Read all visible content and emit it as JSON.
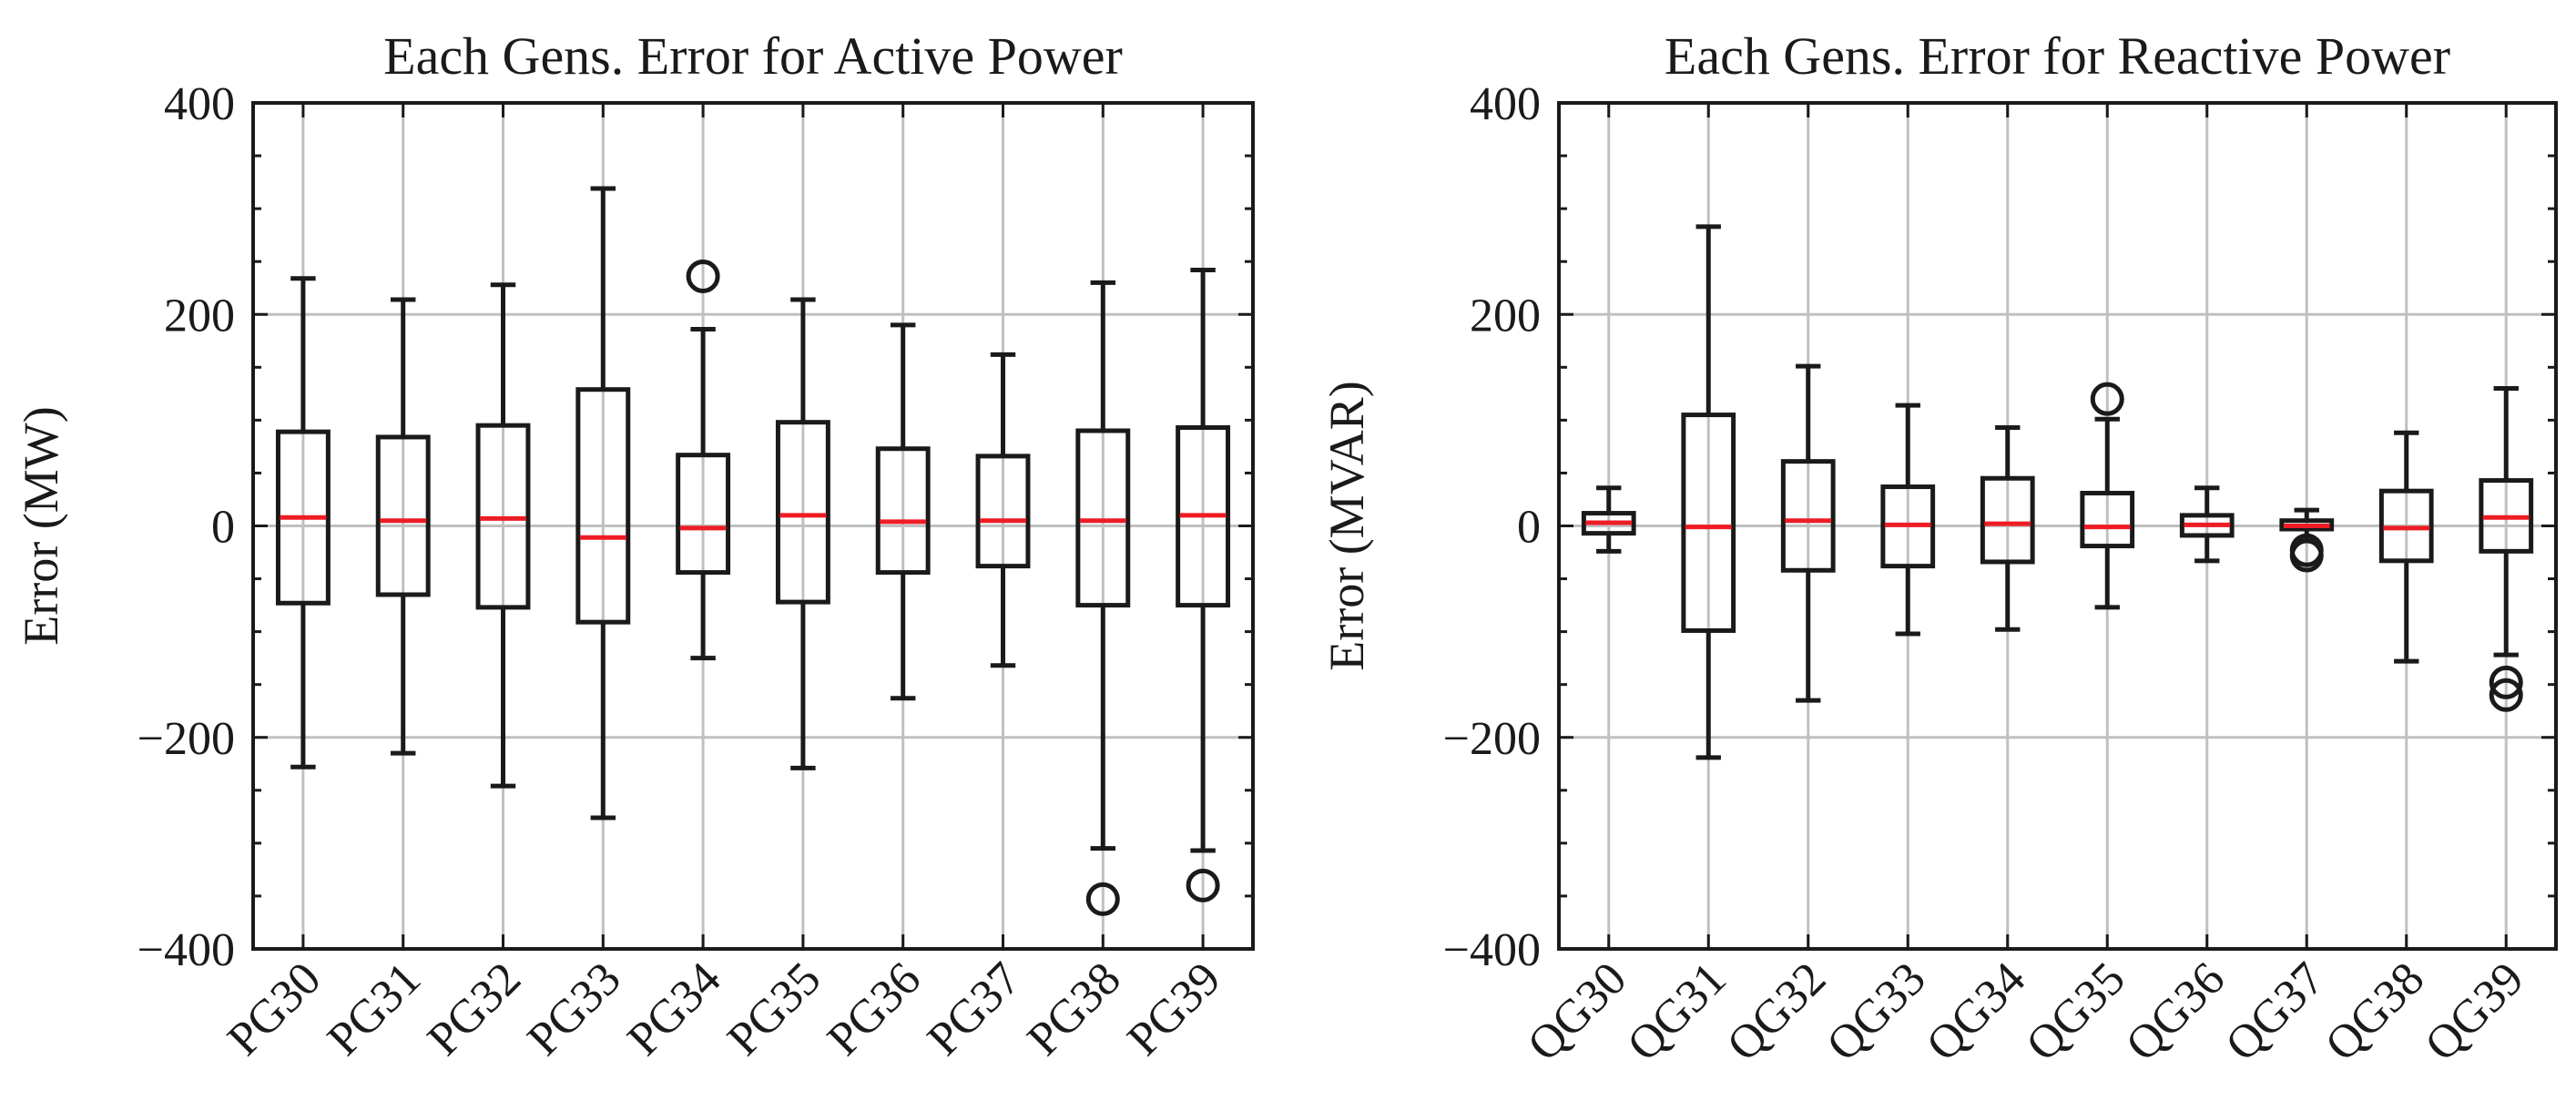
{
  "chart_data": [
    {
      "type": "boxplot",
      "title": "Each Gens. Error for Active Power",
      "xlabel": "",
      "ylabel": "Error (MW)",
      "ylim": [
        -400,
        400
      ],
      "yticks": [
        400,
        200,
        0,
        -200,
        -400
      ],
      "ytick_labels": [
        "400",
        "200",
        "0",
        "−200",
        "−400"
      ],
      "grid": true,
      "colors": {
        "box": "#1a1a1a",
        "median": "#ee1c24",
        "grid": "#c0c0c0"
      },
      "categories": [
        "PG30",
        "PG31",
        "PG32",
        "PG33",
        "PG34",
        "PG35",
        "PG36",
        "PG37",
        "PG38",
        "PG39"
      ],
      "boxes": [
        {
          "label": "PG30",
          "whislo": -228,
          "q1": -73,
          "med": 8,
          "q3": 89,
          "whishi": 234,
          "fliers": []
        },
        {
          "label": "PG31",
          "whislo": -215,
          "q1": -65,
          "med": 5,
          "q3": 84,
          "whishi": 214,
          "fliers": []
        },
        {
          "label": "PG32",
          "whislo": -246,
          "q1": -77,
          "med": 7,
          "q3": 95,
          "whishi": 228,
          "fliers": []
        },
        {
          "label": "PG33",
          "whislo": -276,
          "q1": -91,
          "med": -11,
          "q3": 129,
          "whishi": 319,
          "fliers": []
        },
        {
          "label": "PG34",
          "whislo": -125,
          "q1": -44,
          "med": -2,
          "q3": 67,
          "whishi": 186,
          "fliers": [
            236
          ]
        },
        {
          "label": "PG35",
          "whislo": -229,
          "q1": -72,
          "med": 10,
          "q3": 98,
          "whishi": 214,
          "fliers": []
        },
        {
          "label": "PG36",
          "whislo": -163,
          "q1": -44,
          "med": 4,
          "q3": 73,
          "whishi": 190,
          "fliers": []
        },
        {
          "label": "PG37",
          "whislo": -132,
          "q1": -38,
          "med": 5,
          "q3": 66,
          "whishi": 162,
          "fliers": []
        },
        {
          "label": "PG38",
          "whislo": -305,
          "q1": -75,
          "med": 5,
          "q3": 90,
          "whishi": 230,
          "fliers": [
            -353
          ]
        },
        {
          "label": "PG39",
          "whislo": -307,
          "q1": -75,
          "med": 10,
          "q3": 93,
          "whishi": 242,
          "fliers": [
            -340
          ]
        }
      ]
    },
    {
      "type": "boxplot",
      "title": "Each Gens. Error for Reactive Power",
      "xlabel": "",
      "ylabel": "Error (MVAR)",
      "ylim": [
        -400,
        400
      ],
      "yticks": [
        400,
        200,
        0,
        -200,
        -400
      ],
      "ytick_labels": [
        "400",
        "200",
        "0",
        "−200",
        "−400"
      ],
      "grid": true,
      "colors": {
        "box": "#1a1a1a",
        "median": "#ee1c24",
        "grid": "#c0c0c0"
      },
      "categories": [
        "QG30",
        "QG31",
        "QG32",
        "QG33",
        "QG34",
        "QG35",
        "QG36",
        "QG37",
        "QG38",
        "QG39"
      ],
      "boxes": [
        {
          "label": "QG30",
          "whislo": -24,
          "q1": -7,
          "med": 3,
          "q3": 12,
          "whishi": 36,
          "fliers": []
        },
        {
          "label": "QG31",
          "whislo": -219,
          "q1": -99,
          "med": -1,
          "q3": 105,
          "whishi": 283,
          "fliers": []
        },
        {
          "label": "QG32",
          "whislo": -165,
          "q1": -42,
          "med": 5,
          "q3": 61,
          "whishi": 151,
          "fliers": []
        },
        {
          "label": "QG33",
          "whislo": -102,
          "q1": -38,
          "med": 1,
          "q3": 37,
          "whishi": 114,
          "fliers": []
        },
        {
          "label": "QG34",
          "whislo": -98,
          "q1": -34,
          "med": 2,
          "q3": 45,
          "whishi": 93,
          "fliers": []
        },
        {
          "label": "QG35",
          "whislo": -77,
          "q1": -19,
          "med": -1,
          "q3": 31,
          "whishi": 101,
          "fliers": [
            120
          ]
        },
        {
          "label": "QG36",
          "whislo": -33,
          "q1": -9,
          "med": 1,
          "q3": 10,
          "whishi": 36,
          "fliers": []
        },
        {
          "label": "QG37",
          "whislo": -14,
          "q1": -3,
          "med": 0,
          "q3": 5,
          "whishi": 15,
          "fliers": [
            -23,
            -28
          ]
        },
        {
          "label": "QG38",
          "whislo": -128,
          "q1": -33,
          "med": -2,
          "q3": 33,
          "whishi": 88,
          "fliers": []
        },
        {
          "label": "QG39",
          "whislo": -122,
          "q1": -24,
          "med": 8,
          "q3": 43,
          "whishi": 130,
          "fliers": [
            -148,
            -160
          ]
        }
      ]
    }
  ]
}
